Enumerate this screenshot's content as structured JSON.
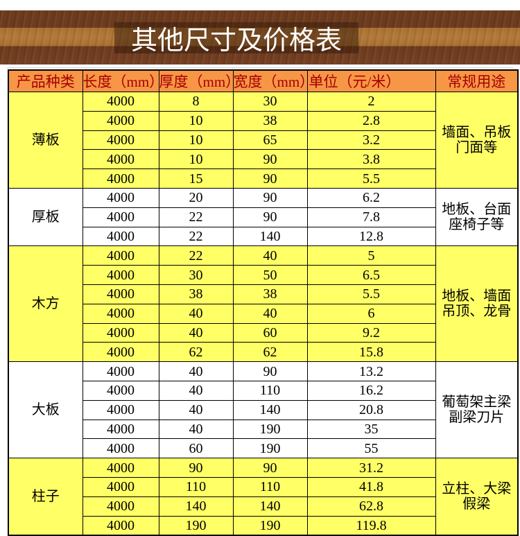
{
  "title": "其他尺寸及价格表",
  "table": {
    "headers": [
      "产品种类",
      "长度（mm）",
      "厚度（mm）",
      "宽度（mm）",
      "单位（元/米）",
      "常规用途"
    ],
    "groups": [
      {
        "name": "薄板",
        "shade": "yellow",
        "usage": [
          "墙面、吊板",
          "门面等"
        ],
        "rows": [
          [
            "4000",
            "8",
            "30",
            "2"
          ],
          [
            "4000",
            "10",
            "38",
            "2.8"
          ],
          [
            "4000",
            "10",
            "65",
            "3.2"
          ],
          [
            "4000",
            "10",
            "90",
            "3.8"
          ],
          [
            "4000",
            "15",
            "90",
            "5.5"
          ]
        ]
      },
      {
        "name": "厚板",
        "shade": "white",
        "usage": [
          "地板、台面",
          "座椅子等"
        ],
        "rows": [
          [
            "4000",
            "20",
            "90",
            "6.2"
          ],
          [
            "4000",
            "22",
            "90",
            "7.8"
          ],
          [
            "4000",
            "22",
            "140",
            "12.8"
          ]
        ]
      },
      {
        "name": "木方",
        "shade": "yellow",
        "usage": [
          "地板、墙面",
          "吊顶、龙骨"
        ],
        "rows": [
          [
            "4000",
            "22",
            "40",
            "5"
          ],
          [
            "4000",
            "30",
            "50",
            "6.5"
          ],
          [
            "4000",
            "38",
            "38",
            "5.5"
          ],
          [
            "4000",
            "40",
            "40",
            "6"
          ],
          [
            "4000",
            "40",
            "60",
            "9.2"
          ],
          [
            "4000",
            "62",
            "62",
            "15.8"
          ]
        ]
      },
      {
        "name": "大板",
        "shade": "white",
        "usage": [
          "葡萄架主梁",
          "副梁刀片"
        ],
        "rows": [
          [
            "4000",
            "40",
            "90",
            "13.2"
          ],
          [
            "4000",
            "40",
            "110",
            "16.2"
          ],
          [
            "4000",
            "40",
            "140",
            "20.8"
          ],
          [
            "4000",
            "40",
            "190",
            "35"
          ],
          [
            "4000",
            "60",
            "190",
            "55"
          ]
        ]
      },
      {
        "name": "柱子",
        "shade": "yellow",
        "usage": [
          "立柱、大梁",
          "假梁"
        ],
        "rows": [
          [
            "4000",
            "90",
            "90",
            "31.2"
          ],
          [
            "4000",
            "110",
            "110",
            "41.8"
          ],
          [
            "4000",
            "140",
            "140",
            "62.8"
          ],
          [
            "4000",
            "190",
            "190",
            "119.8"
          ]
        ]
      }
    ]
  },
  "colors": {
    "header_bg": "#f79646",
    "header_text": "#a40000",
    "row_yellow": "#ffff66",
    "row_white": "#ffffff",
    "wood_dark": "#6d3b1e",
    "wood_light": "#a9712f",
    "title_text": "#ffffff",
    "border": "#000000"
  }
}
